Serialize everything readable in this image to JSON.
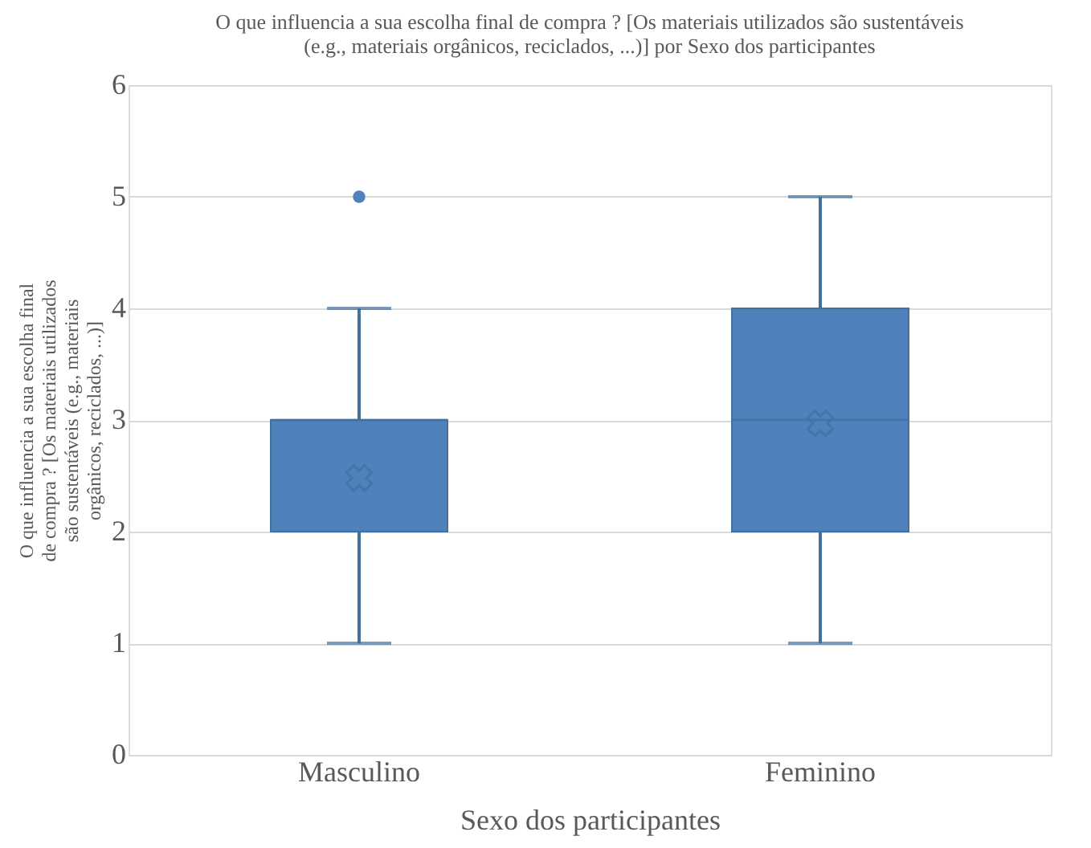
{
  "chart_data": {
    "type": "box",
    "title": "O que influencia a sua escolha final de compra ?  [Os materiais utilizados são sustentáveis (e.g., materiais orgânicos, reciclados, ...)] por Sexo dos participantes",
    "xlabel": "Sexo dos participantes",
    "ylabel": "O que influencia a sua escolha final de compra ?  [Os materiais utilizados são sustentáveis (e.g., materiais orgânicos, reciclados, ...)]",
    "categories": [
      "Masculino",
      "Feminino"
    ],
    "series": [
      {
        "color": "#4f81bd",
        "boxes": [
          {
            "low": 1,
            "q1": 2,
            "median": 3,
            "q3": 3,
            "high": 4,
            "mean": 2.48,
            "outliers": [
              5
            ]
          },
          {
            "low": 1,
            "q1": 2,
            "median": 3,
            "q3": 4,
            "high": 5,
            "mean": 2.97
          }
        ]
      }
    ],
    "ylim": [
      0,
      6
    ],
    "yticks": [
      0,
      1,
      2,
      3,
      4,
      5,
      6
    ],
    "grid": "y"
  }
}
